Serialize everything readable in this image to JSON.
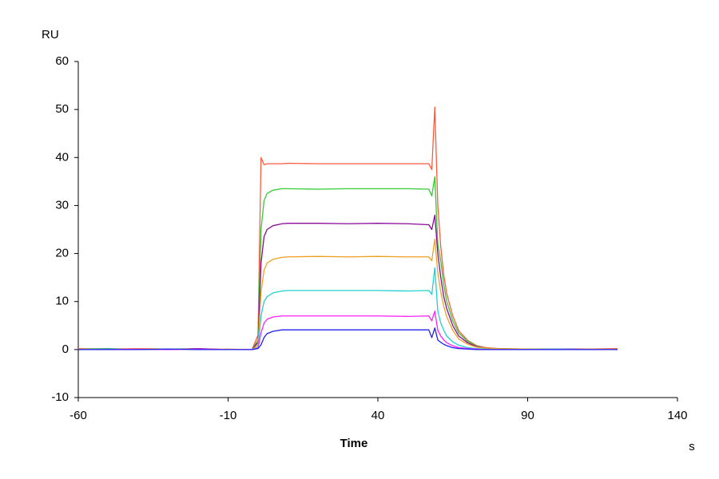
{
  "chart_data": {
    "type": "line",
    "y_label": "RU",
    "x_label": "Time",
    "x_unit": "s",
    "xlim": [
      -60,
      140
    ],
    "ylim": [
      -10,
      60
    ],
    "xticks": [
      -60,
      -10,
      40,
      90,
      140
    ],
    "yticks": [
      -10,
      0,
      10,
      20,
      30,
      40,
      50,
      60
    ],
    "x": [
      -60,
      -50,
      -40,
      -30,
      -20,
      -10,
      -2,
      0,
      1,
      2,
      3,
      5,
      8,
      10,
      20,
      30,
      40,
      50,
      57,
      58,
      59,
      60,
      61,
      62,
      63,
      65,
      67,
      70,
      73,
      76,
      80,
      90,
      100,
      110,
      120
    ],
    "series": [
      {
        "color": "#ff5a3c",
        "values": [
          0.2,
          0.1,
          0.2,
          0.1,
          0.2,
          0,
          0,
          3,
          40,
          38.5,
          38.7,
          38.7,
          38.7,
          38.8,
          38.7,
          38.7,
          38.7,
          38.7,
          38.7,
          37.5,
          50.5,
          30,
          21.3,
          15.5,
          11.6,
          7,
          3.9,
          1.9,
          0.8,
          0.4,
          0.2,
          0.1,
          0.1,
          0.1,
          0.2
        ]
      },
      {
        "color": "#33cc33",
        "values": [
          0.1,
          0.2,
          0,
          0.1,
          0.1,
          0,
          0,
          2,
          25,
          31,
          32.5,
          33.2,
          33.5,
          33.5,
          33.4,
          33.5,
          33.5,
          33.5,
          33.4,
          32,
          36,
          22,
          18.4,
          13.4,
          10,
          6,
          3.4,
          1.7,
          0.7,
          0.3,
          0.2,
          0.1,
          0.1,
          0.1,
          0.1
        ]
      },
      {
        "color": "#8a0a9a",
        "values": [
          0,
          0.1,
          0.1,
          0,
          0.2,
          0,
          0,
          1.5,
          18,
          23.5,
          25,
          25.8,
          26.2,
          26.3,
          26.3,
          26.2,
          26.3,
          26.2,
          26,
          25,
          28,
          20,
          15,
          11,
          8.5,
          5,
          2.8,
          1.4,
          0.6,
          0.3,
          0.2,
          0,
          0.1,
          0.1,
          0.1
        ]
      },
      {
        "color": "#f0a020",
        "values": [
          0.1,
          0,
          0.2,
          0.1,
          0,
          0.1,
          0,
          1,
          12,
          16.5,
          18,
          18.8,
          19.2,
          19.3,
          19.4,
          19.3,
          19.4,
          19.3,
          19.3,
          18.5,
          23,
          16,
          12,
          9,
          6.8,
          4,
          2.2,
          1.1,
          0.5,
          0.3,
          0.2,
          0.1,
          0,
          0.1,
          0.1
        ]
      },
      {
        "color": "#20d0d0",
        "values": [
          0,
          0.1,
          0,
          0.1,
          0.1,
          0,
          0,
          0.5,
          7,
          10,
          11,
          11.8,
          12.2,
          12.3,
          12.3,
          12.3,
          12.3,
          12.2,
          12.3,
          11.5,
          17,
          8,
          5.5,
          4,
          2.8,
          1.6,
          0.9,
          0.4,
          0.2,
          0.1,
          0,
          0,
          0.1,
          0,
          0
        ]
      },
      {
        "color": "#ff20ff",
        "values": [
          0,
          0,
          0.1,
          0,
          0.1,
          0,
          0,
          0.3,
          3.5,
          5.5,
          6.3,
          6.8,
          7,
          7,
          7,
          7,
          7,
          6.9,
          7,
          6,
          8,
          4,
          2.8,
          2,
          1.4,
          0.8,
          0.4,
          0.2,
          0.1,
          0,
          0,
          0,
          0,
          0,
          0
        ]
      },
      {
        "color": "#2020ee",
        "values": [
          0,
          0,
          0,
          0.1,
          0,
          0,
          0,
          0.2,
          1,
          2.5,
          3.3,
          3.8,
          4.1,
          4.1,
          4.1,
          4.1,
          4.1,
          4.1,
          4.1,
          2.5,
          4.5,
          2,
          1.5,
          1.1,
          0.8,
          0.4,
          0.2,
          0.1,
          0,
          0,
          0,
          0,
          0,
          0,
          0
        ]
      }
    ]
  }
}
